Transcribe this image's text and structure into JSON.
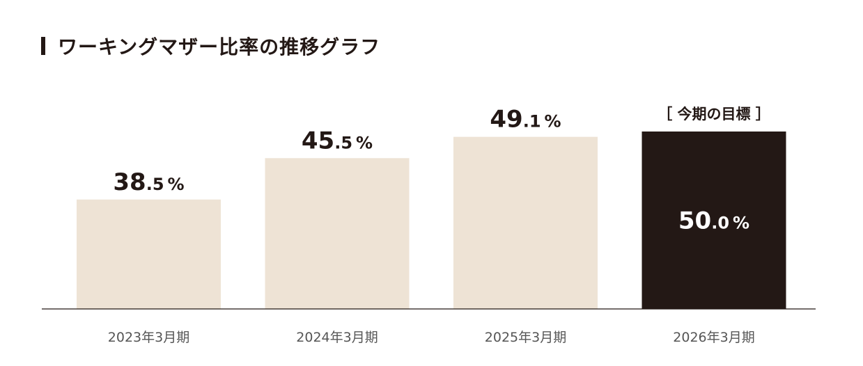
{
  "title": "ワーキングマザー比率の推移グラフ",
  "chart_data": {
    "type": "bar",
    "categories": [
      "2023年3月期",
      "2024年3月期",
      "2025年3月期",
      "2026年3月期"
    ],
    "values": [
      38.5,
      45.5,
      49.1,
      50.0
    ],
    "value_labels": [
      {
        "int": "38",
        "dec": ".5",
        "unit": "%"
      },
      {
        "int": "45",
        "dec": ".5",
        "unit": "%"
      },
      {
        "int": "49",
        "dec": ".1",
        "unit": "%"
      },
      {
        "int": "50",
        "dec": ".0",
        "unit": "%"
      }
    ],
    "annotation": "［ 今期の目標 ］",
    "highlight_index": 3,
    "ylim": [
      20,
      50
    ],
    "grid": false,
    "colors": {
      "bar": "#eee3d5",
      "highlight_bar": "#231815",
      "text": "#231815",
      "highlight_text": "#ffffff",
      "axis": "#231815",
      "tick_text": "#555555"
    }
  }
}
